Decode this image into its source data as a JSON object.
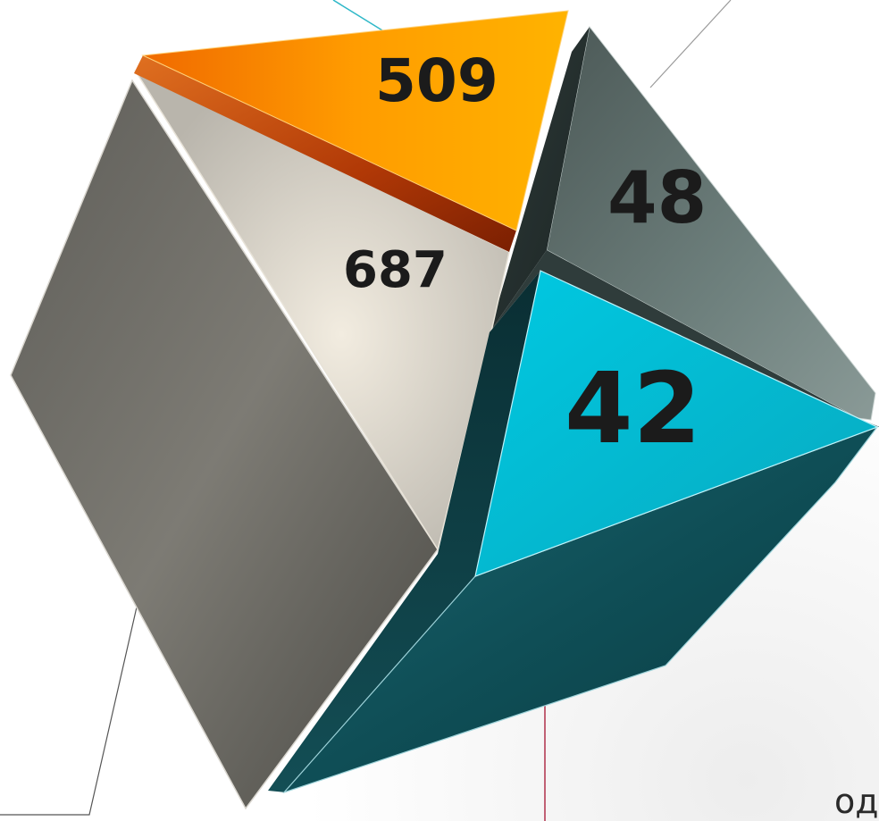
{
  "values": {
    "orange": "509",
    "dark_gray": "48",
    "beige": "687",
    "cyan": "42"
  },
  "partial_label": "од",
  "colors": {
    "orange": "#FFB000",
    "orange_dark": "#E06000",
    "beige": "#DAD5CA",
    "slate": "#5A6A68",
    "cyan": "#00BFD6",
    "teal": "#0E4E55",
    "gray": "#75736C",
    "rust": "#B53A06"
  }
}
